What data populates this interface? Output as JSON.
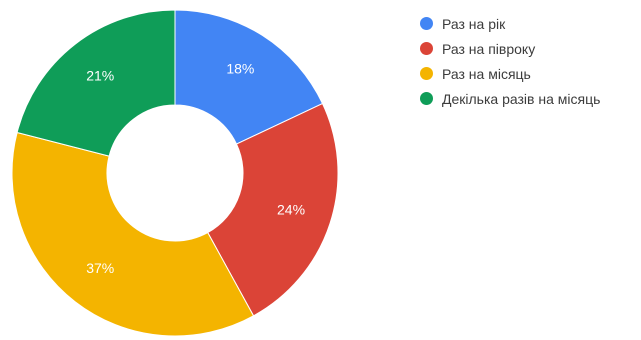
{
  "chart_data": {
    "type": "pie",
    "donut": true,
    "categories": [
      "Раз на рік",
      "Раз на півроку",
      "Раз на місяць",
      "Декілька разів на місяць"
    ],
    "values": [
      18,
      24,
      37,
      21
    ],
    "labels": [
      "18%",
      "24%",
      "37%",
      "21%"
    ],
    "colors": [
      "#4285f4",
      "#db4437",
      "#f4b400",
      "#0f9d58"
    ],
    "legend_position": "right",
    "start": "top",
    "direction": "clockwise"
  }
}
